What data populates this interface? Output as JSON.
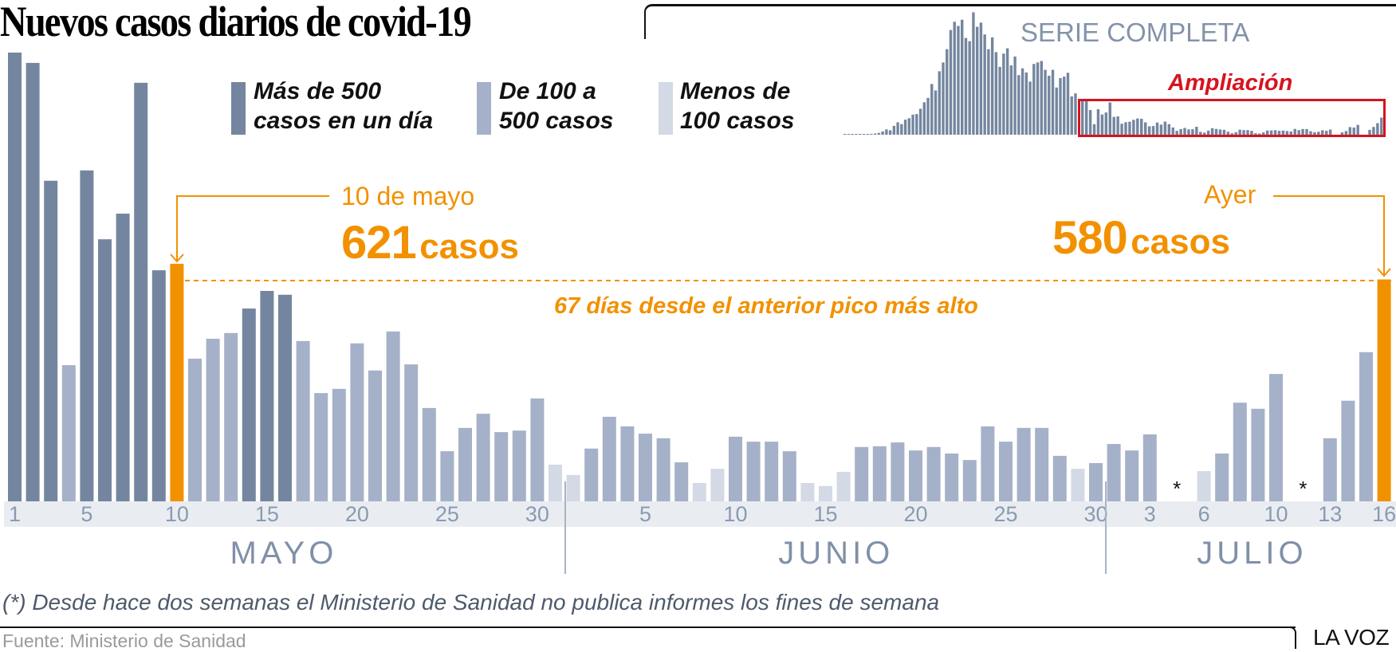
{
  "header": {
    "title": "Nuevos casos diarios de covid-19"
  },
  "legend": [
    {
      "label_line1": "Más de 500",
      "label_line2": "casos en un día",
      "color": "#74869f"
    },
    {
      "label_line1": "De 100 a",
      "label_line2": "500 casos",
      "color": "#a5b1c8"
    },
    {
      "label_line1": "Menos de",
      "label_line2": "100 casos",
      "color": "#d3d9e5"
    }
  ],
  "mini_chart": {
    "title": "SERIE COMPLETA",
    "zoom_label": "Ampliación",
    "zoom_color": "#d7131f"
  },
  "annotations": {
    "left": {
      "date": "10 de mayo",
      "number": "621",
      "unit": "casos"
    },
    "right": {
      "date": "Ayer",
      "number": "580",
      "unit": "casos"
    },
    "peak_note": "67 días desde el anterior pico más alto"
  },
  "footer": {
    "footnote": "(*) Desde hace dos semanas el Ministerio de Sanidad no publica informes los fines de semana",
    "source": "Fuente: Ministerio de Sanidad",
    "brand": "LA VOZ"
  },
  "colors": {
    "high": "#74869f",
    "mid": "#a5b1c8",
    "low": "#d3d9e5",
    "highlight": "#f29100",
    "axis_band": "#e9edf2"
  },
  "chart_data": {
    "type": "bar",
    "title": "Nuevos casos diarios de covid-19",
    "xlabel": "",
    "ylabel": "",
    "months": [
      {
        "label": "MAYO",
        "start_index": 0,
        "end_index": 30
      },
      {
        "label": "JUNIO",
        "start_index": 31,
        "end_index": 60
      },
      {
        "label": "JULIO",
        "start_index": 61,
        "end_index": 76
      }
    ],
    "tick_labels": [
      {
        "index": 0,
        "label": "1"
      },
      {
        "index": 4,
        "label": "5"
      },
      {
        "index": 9,
        "label": "10"
      },
      {
        "index": 14,
        "label": "15"
      },
      {
        "index": 19,
        "label": "20"
      },
      {
        "index": 24,
        "label": "25"
      },
      {
        "index": 29,
        "label": "30"
      },
      {
        "index": 35,
        "label": "5"
      },
      {
        "index": 40,
        "label": "10"
      },
      {
        "index": 45,
        "label": "15"
      },
      {
        "index": 50,
        "label": "20"
      },
      {
        "index": 55,
        "label": "25"
      },
      {
        "index": 60,
        "label": "30"
      },
      {
        "index": 63,
        "label": "3"
      },
      {
        "index": 66,
        "label": "6"
      },
      {
        "index": 70,
        "label": "10"
      },
      {
        "index": 73,
        "label": "13"
      },
      {
        "index": 76,
        "label": "16"
      }
    ],
    "missing_markers": [
      {
        "between_index": 64.5,
        "label": "*"
      },
      {
        "between_index": 71.5,
        "label": "*"
      }
    ],
    "highlight_indices": [
      9,
      76
    ],
    "thresholds": {
      "high": 500,
      "low": 100
    },
    "values": [
      1173,
      1146,
      838,
      356,
      865,
      685,
      752,
      1094,
      604,
      621,
      373,
      425,
      440,
      504,
      550,
      540,
      419,
      283,
      294,
      413,
      342,
      444,
      358,
      244,
      131,
      192,
      229,
      181,
      185,
      269,
      96,
      69,
      138,
      221,
      196,
      177,
      165,
      102,
      48,
      85,
      169,
      156,
      156,
      131,
      48,
      40,
      77,
      142,
      144,
      154,
      133,
      142,
      125,
      108,
      196,
      156,
      192,
      192,
      119,
      85,
      100,
      150,
      133,
      175,
      null,
      null,
      79,
      125,
      258,
      242,
      333,
      null,
      null,
      165,
      263,
      390,
      580
    ],
    "full_series_before_may": [
      5,
      5,
      8,
      10,
      12,
      14,
      20,
      30,
      40,
      60,
      110,
      180,
      150,
      300,
      420,
      360,
      510,
      560,
      680,
      700,
      880,
      1100,
      1250,
      1720,
      1500,
      2150,
      2450,
      2900,
      3550,
      3830,
      3690,
      3900,
      3280,
      3170,
      4150,
      3660,
      3800,
      3400,
      2900,
      3300,
      2800,
      2300,
      2750,
      2930,
      2350,
      2650,
      2020,
      2250,
      2110,
      1800,
      2400,
      2450,
      2500,
      2200,
      2000,
      2200,
      1600,
      1920,
      1970,
      2100,
      1300,
      1400
    ]
  }
}
